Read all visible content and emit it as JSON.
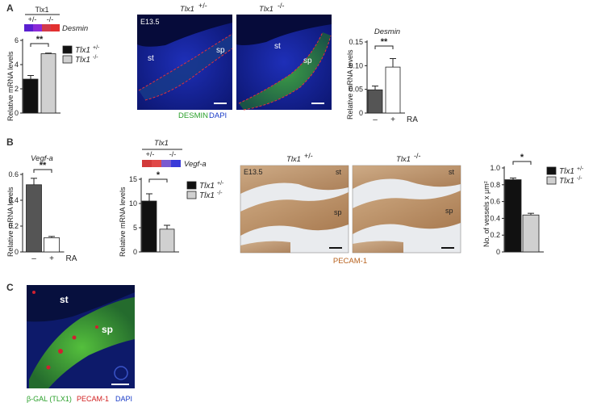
{
  "panels": {
    "A": {
      "label": "A",
      "heatmap": {
        "gene_header": "Tlx1",
        "genotypes": [
          "+/-",
          "-/-"
        ],
        "gene": "Desmin",
        "cells": [
          "#5a1fd0",
          "#8a2ad8",
          "#d23a4a",
          "#e23030"
        ]
      },
      "micro": {
        "stage": "E13.5",
        "left_title": "Tlx1",
        "left_sup": "+/-",
        "right_title": "Tlx1",
        "right_sup": "-/-",
        "st": "st",
        "sp": "sp",
        "caption_a": "DESMIN",
        "caption_b": "DAPI"
      }
    },
    "B": {
      "label": "B",
      "heatmap": {
        "gene_header": "Tlx1",
        "genotypes": [
          "+/-",
          "-/-"
        ],
        "gene": "Vegf-a",
        "cells": [
          "#d23a3a",
          "#e04848",
          "#7a5ad0",
          "#3a3ad8"
        ]
      },
      "micro": {
        "stage": "E13.5",
        "left_title": "Tlx1",
        "left_sup": "+/-",
        "right_title": "Tlx1",
        "right_sup": "-/-",
        "st": "st",
        "sp": "sp",
        "caption": "PECAM-1"
      }
    },
    "C": {
      "label": "C",
      "st": "st",
      "sp": "sp",
      "caption_a": "β-GAL (TLX1)",
      "caption_b": "PECAM-1",
      "caption_c": "DAPI"
    }
  },
  "colors": {
    "dark_bar": "#555555",
    "black_bar": "#111111",
    "grey_bar": "#d0d0d0",
    "white_bar": "#ffffff",
    "green": "#2aa02a",
    "red": "#d22020",
    "blue": "#1a3cc8",
    "brown": "#b8621e"
  },
  "chart_data": [
    {
      "id": "A-left",
      "type": "bar",
      "ylabel": "Relative mRNA levels",
      "ylim": [
        0,
        6
      ],
      "yticks": [
        "0",
        "2",
        "4",
        "6"
      ],
      "series": [
        {
          "name": "Tlx1 +/-",
          "values": [
            2.8
          ],
          "error": [
            0.3
          ]
        },
        {
          "name": "Tlx1 -/-",
          "values": [
            4.9
          ],
          "error": [
            0.05
          ]
        }
      ],
      "legend": [
        "Tlx1",
        "Tlx1"
      ],
      "legend_sup": [
        "+/-",
        "-/-"
      ],
      "significance": "**"
    },
    {
      "id": "A-right",
      "type": "bar",
      "title": "Desmin",
      "ylabel": "Relative mRNA levels",
      "ylim": [
        0,
        0.15
      ],
      "yticks": [
        "0",
        "0.05",
        "0.10",
        "0.15"
      ],
      "categories": [
        "–",
        "+"
      ],
      "xlabel": "RA",
      "values": [
        0.049,
        0.097
      ],
      "error": [
        0.008,
        0.018
      ],
      "significance": "**"
    },
    {
      "id": "B-left",
      "type": "bar",
      "title": "Vegf-a",
      "ylabel": "Relative mRNA levels",
      "ylim": [
        0,
        0.6
      ],
      "yticks": [
        "0",
        "0.2",
        "0.4",
        "0.6"
      ],
      "categories": [
        "–",
        "+"
      ],
      "xlabel": "RA",
      "values": [
        0.52,
        0.11
      ],
      "error": [
        0.05,
        0.01
      ],
      "significance": "**"
    },
    {
      "id": "B-mid",
      "type": "bar",
      "ylabel": "Relative mRNA levels",
      "ylim": [
        0,
        15
      ],
      "yticks": [
        "0",
        "5",
        "10",
        "15"
      ],
      "series": [
        {
          "name": "Tlx1 +/-",
          "values": [
            10.5
          ],
          "error": [
            1.5
          ]
        },
        {
          "name": "Tlx1 -/-",
          "values": [
            4.7
          ],
          "error": [
            0.8
          ]
        }
      ],
      "legend": [
        "Tlx1",
        "Tlx1"
      ],
      "legend_sup": [
        "+/-",
        "-/-"
      ],
      "significance": "*"
    },
    {
      "id": "B-right",
      "type": "bar",
      "ylabel": "No. of vessels x μm²",
      "ylim": [
        0,
        1.0
      ],
      "yticks": [
        "0",
        "0.2",
        "0.4",
        "0.6",
        "0.8",
        "1.0"
      ],
      "series": [
        {
          "name": "Tlx1 +/-",
          "values": [
            0.86
          ],
          "error": [
            0.02
          ]
        },
        {
          "name": "Tlx1 -/-",
          "values": [
            0.44
          ],
          "error": [
            0.02
          ]
        }
      ],
      "legend": [
        "Tlx1",
        "Tlx1"
      ],
      "legend_sup": [
        "+/-",
        "-/-"
      ],
      "significance": "*"
    }
  ]
}
